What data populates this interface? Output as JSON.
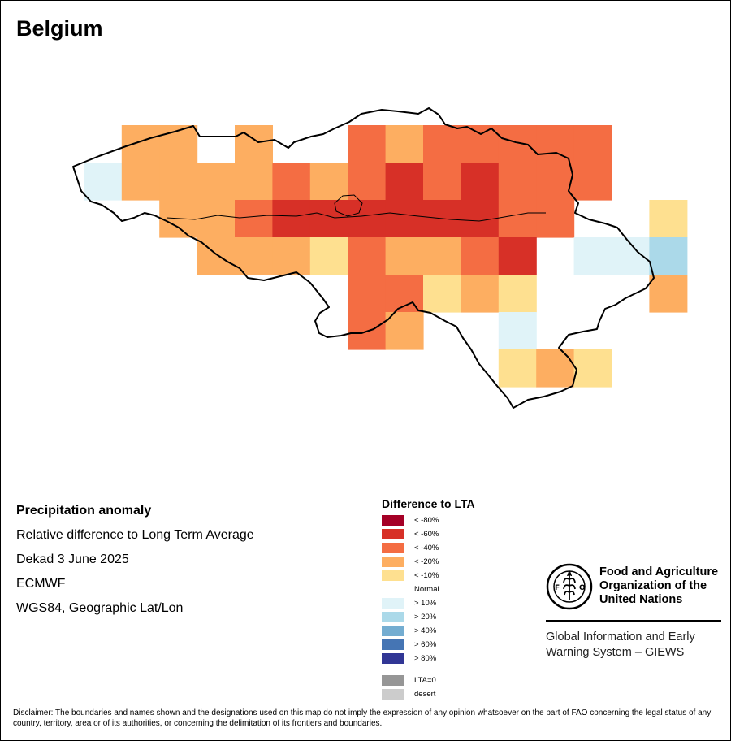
{
  "title": "Belgium",
  "info": {
    "heading": "Precipitation anomaly",
    "line1": "Relative difference to Long Term Average",
    "line2": "Dekad 3 June 2025",
    "line3": "ECMWF",
    "line4": "WGS84, Geographic Lat/Lon"
  },
  "legend": {
    "title": "Difference to LTA",
    "items": [
      {
        "label": "< -80%",
        "color": "#a50026"
      },
      {
        "label": "< -60%",
        "color": "#d73027"
      },
      {
        "label": "< -40%",
        "color": "#f46d43"
      },
      {
        "label": "< -20%",
        "color": "#fdae61"
      },
      {
        "label": "< -10%",
        "color": "#fee090"
      },
      {
        "label": "Normal",
        "color": "none"
      },
      {
        "label": "> 10%",
        "color": "#e0f3f8"
      },
      {
        "label": "> 20%",
        "color": "#abd9e9"
      },
      {
        "label": "> 40%",
        "color": "#74add1"
      },
      {
        "label": "> 60%",
        "color": "#4575b4"
      },
      {
        "label": "> 80%",
        "color": "#313695"
      },
      {
        "label": "LTA=0",
        "color": "#969696"
      },
      {
        "label": "desert",
        "color": "#cccccc"
      }
    ]
  },
  "map_grid": {
    "classes": {
      "m60": "#d73027",
      "m40": "#f46d43",
      "m20": "#fdae61",
      "m10": "#fee090",
      "p10": "#e0f3f8",
      "p20": "#abd9e9"
    },
    "rows": [
      [
        "",
        "",
        "m20",
        "m20",
        "",
        "m20",
        "",
        "",
        "m40",
        "m20",
        "m40",
        "m40",
        "m40",
        "m40",
        "m40",
        "",
        "",
        ""
      ],
      [
        "",
        "p10",
        "m20",
        "m20",
        "m20",
        "m20",
        "m40",
        "m20",
        "m40",
        "m60",
        "m40",
        "m60",
        "m40",
        "m40",
        "m40",
        "",
        "",
        ""
      ],
      [
        "",
        "",
        "",
        "m20",
        "m20",
        "m40",
        "m60",
        "m60",
        "m60",
        "m60",
        "m60",
        "m60",
        "m40",
        "m40",
        "",
        "",
        "m10",
        ""
      ],
      [
        "",
        "",
        "",
        "",
        "m20",
        "m20",
        "m20",
        "m10",
        "m40",
        "m20",
        "m20",
        "m40",
        "m60",
        "",
        "p10",
        "p10",
        "p20",
        ""
      ],
      [
        "",
        "",
        "",
        "",
        "",
        "",
        "",
        "",
        "m40",
        "m40",
        "m10",
        "m20",
        "m10",
        "",
        "",
        "",
        "m20",
        ""
      ],
      [
        "",
        "",
        "",
        "",
        "",
        "",
        "",
        "",
        "m40",
        "m20",
        "",
        "",
        "p10",
        "",
        "",
        "",
        "",
        ""
      ],
      [
        "",
        "",
        "",
        "",
        "",
        "",
        "",
        "",
        "",
        "",
        "",
        "",
        "m10",
        "m20",
        "m10",
        "",
        "",
        ""
      ]
    ]
  },
  "fao": {
    "name_line1": "Food and Agriculture",
    "name_line2": "Organization of the",
    "name_line3": "United Nations",
    "giews_line1": "Global Information and Early",
    "giews_line2": "Warning System – GIEWS",
    "logo_text": "FIAT PANIS"
  },
  "disclaimer": "Disclaimer: The boundaries and names shown and the designations used on this map do not imply the expression of any opinion whatsoever on the part of FAO concerning the legal status of any country, territory, area or of its authorities, or concerning the delimitation of its frontiers and boundaries."
}
